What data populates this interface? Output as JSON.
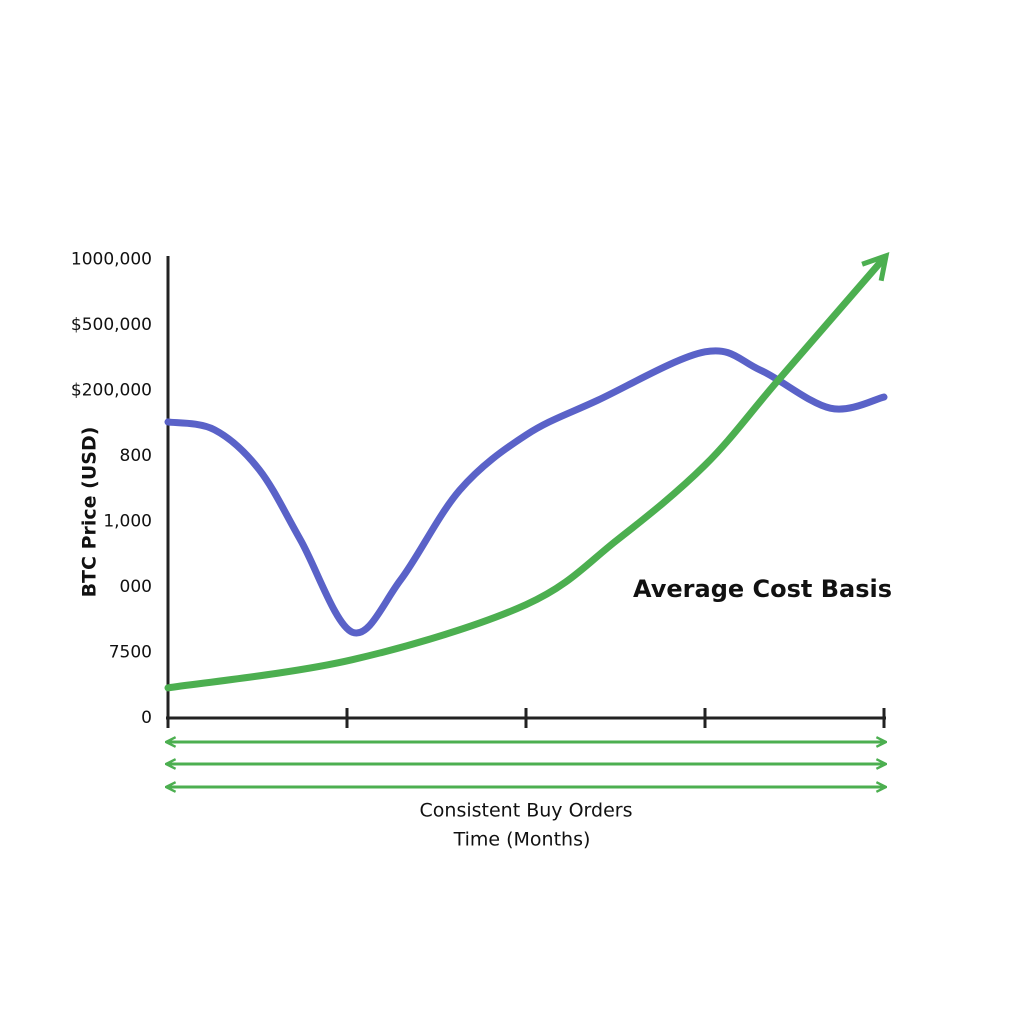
{
  "chart_data": {
    "type": "line",
    "y_label": "BTC Price (USD)",
    "x_label": "Time (Months)",
    "y_categories": [
      "0",
      "7500",
      "000",
      "1,000",
      "800",
      "$200,000",
      "$500,000",
      "1000,000"
    ],
    "xlim": [
      0,
      4
    ],
    "xticks": [
      0,
      1,
      2,
      3,
      4
    ],
    "series": [
      {
        "color": "#5a62c8",
        "x": [
          0,
          0.26,
          0.51,
          0.74,
          1.03,
          1.3,
          1.63,
          2.0,
          2.4,
          3.0,
          3.31,
          3.7,
          4.0
        ],
        "values": [
          4.52,
          4.4,
          3.79,
          2.72,
          1.31,
          2.11,
          3.48,
          4.32,
          4.85,
          5.59,
          5.31,
          4.73,
          4.9
        ]
      },
      {
        "name": "Average Cost Basis",
        "color": "#4caf50",
        "x": [
          0,
          1.03,
          2,
          2.51,
          3,
          3.41,
          4
        ],
        "values": [
          0.46,
          0.89,
          1.73,
          2.72,
          3.86,
          5.16,
          7.02
        ]
      }
    ],
    "annotation": "Consistent Buy Orders"
  }
}
